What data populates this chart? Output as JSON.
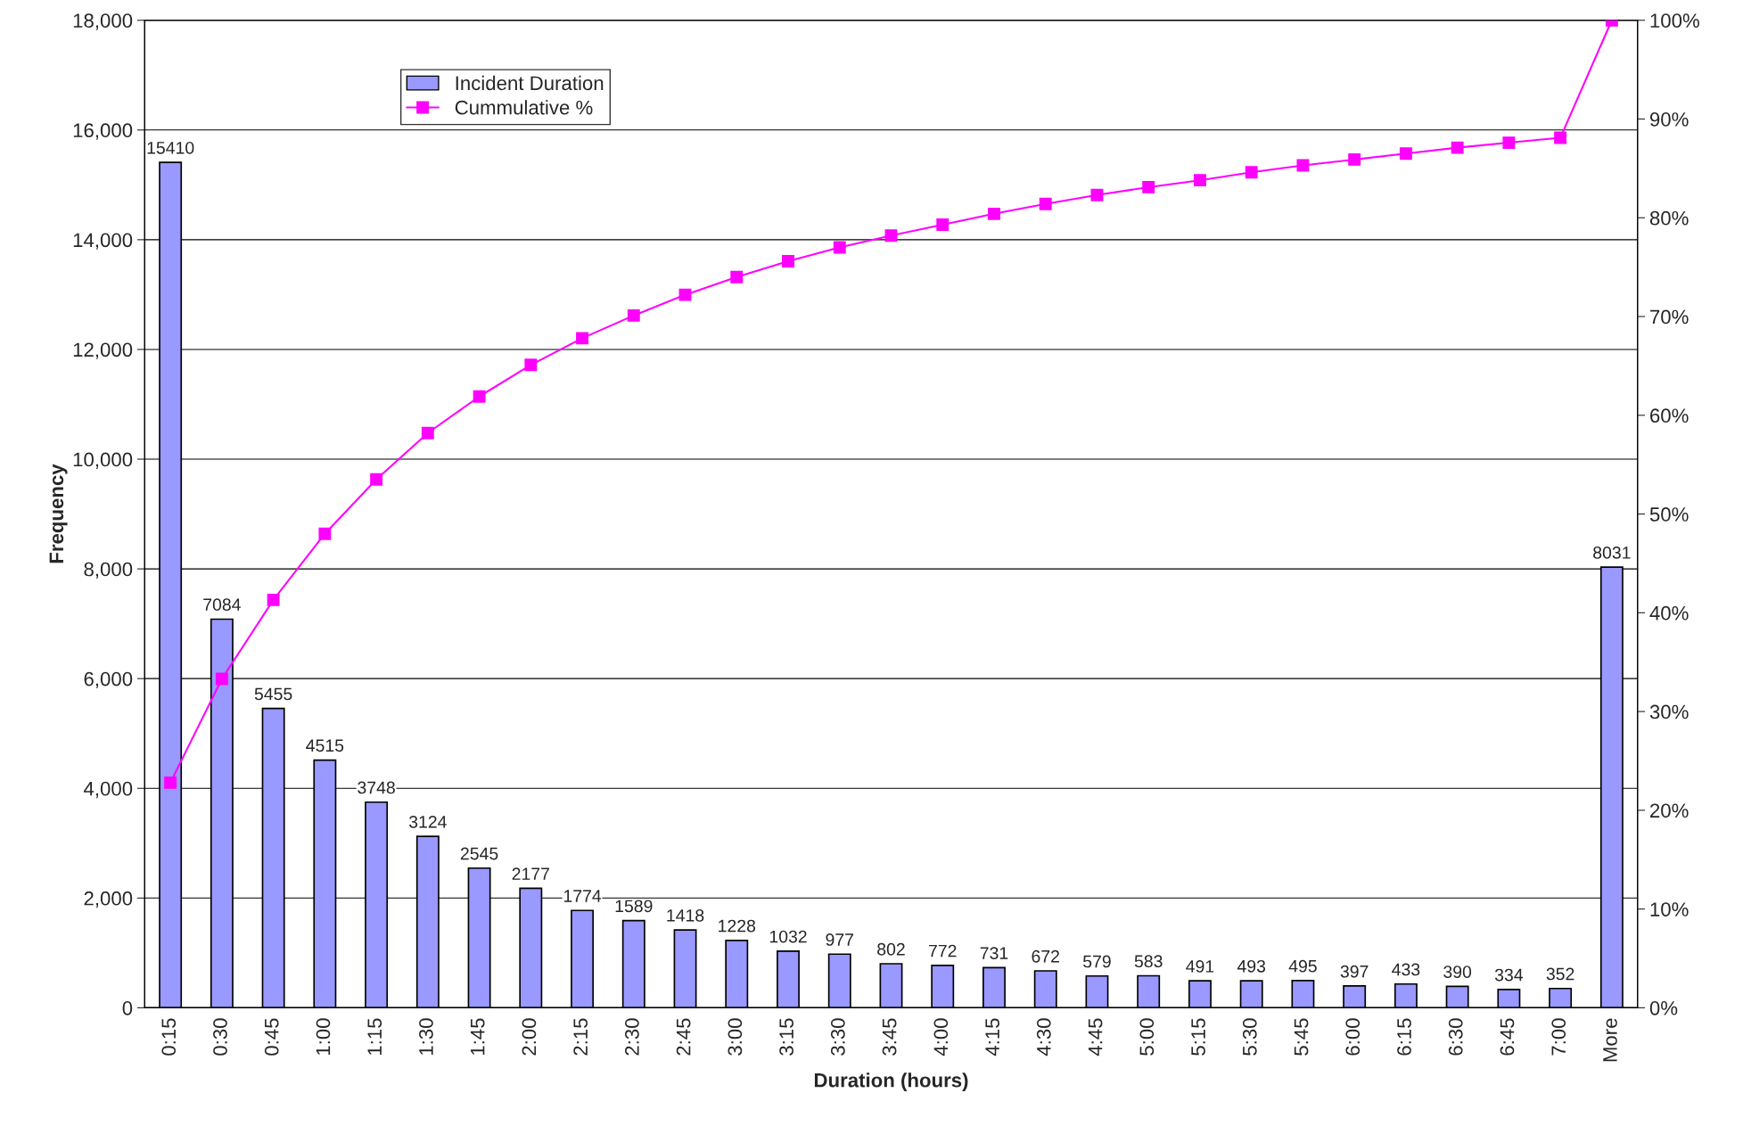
{
  "chart_data": {
    "type": "bar",
    "xlabel": "Duration (hours)",
    "ylabel": "Frequency",
    "categories": [
      "0:15",
      "0:30",
      "0:45",
      "1:00",
      "1:15",
      "1:30",
      "1:45",
      "2:00",
      "2:15",
      "2:30",
      "2:45",
      "3:00",
      "3:15",
      "3:30",
      "3:45",
      "4:00",
      "4:15",
      "4:30",
      "4:45",
      "5:00",
      "5:15",
      "5:30",
      "5:45",
      "6:00",
      "6:15",
      "6:30",
      "6:45",
      "7:00",
      "More"
    ],
    "series": [
      {
        "name": "Incident Duration",
        "color": "#9999ff",
        "values": [
          15410,
          7084,
          5455,
          4515,
          3748,
          3124,
          2545,
          2177,
          1774,
          1589,
          1418,
          1228,
          1032,
          977,
          802,
          772,
          731,
          672,
          579,
          583,
          491,
          493,
          495,
          397,
          433,
          390,
          334,
          352,
          8031
        ],
        "data_labels": true
      },
      {
        "name": "Cummulative %",
        "type": "line",
        "axis": "y2",
        "color": "#ff00ff",
        "marker": "square",
        "values": [
          22.8,
          33.3,
          41.3,
          48.0,
          53.5,
          58.2,
          61.9,
          65.1,
          67.8,
          70.1,
          72.2,
          74.0,
          75.6,
          77.0,
          78.2,
          79.3,
          80.4,
          81.4,
          82.3,
          83.1,
          83.8,
          84.6,
          85.3,
          85.9,
          86.5,
          87.1,
          87.6,
          88.1,
          100
        ]
      }
    ],
    "ylim": [
      0,
      18000
    ],
    "yticks": [
      {
        "value": 0,
        "label": "0"
      },
      {
        "value": 2000,
        "label": "2,000"
      },
      {
        "value": 4000,
        "label": "4,000"
      },
      {
        "value": 6000,
        "label": "6,000"
      },
      {
        "value": 8000,
        "label": "8,000"
      },
      {
        "value": 10000,
        "label": "10,000"
      },
      {
        "value": 12000,
        "label": "12,000"
      },
      {
        "value": 14000,
        "label": "14,000"
      },
      {
        "value": 16000,
        "label": "16,000"
      },
      {
        "value": 18000,
        "label": "18,000"
      }
    ],
    "y2lim": [
      0,
      100
    ],
    "y2ticks": [
      {
        "value": 0,
        "label": "0%"
      },
      {
        "value": 10,
        "label": "10%"
      },
      {
        "value": 20,
        "label": "20%"
      },
      {
        "value": 30,
        "label": "30%"
      },
      {
        "value": 40,
        "label": "40%"
      },
      {
        "value": 50,
        "label": "50%"
      },
      {
        "value": 60,
        "label": "60%"
      },
      {
        "value": 70,
        "label": "70%"
      },
      {
        "value": 80,
        "label": "80%"
      },
      {
        "value": 90,
        "label": "90%"
      },
      {
        "value": 100,
        "label": "100%"
      }
    ],
    "grid": "y",
    "legend": "top left"
  }
}
